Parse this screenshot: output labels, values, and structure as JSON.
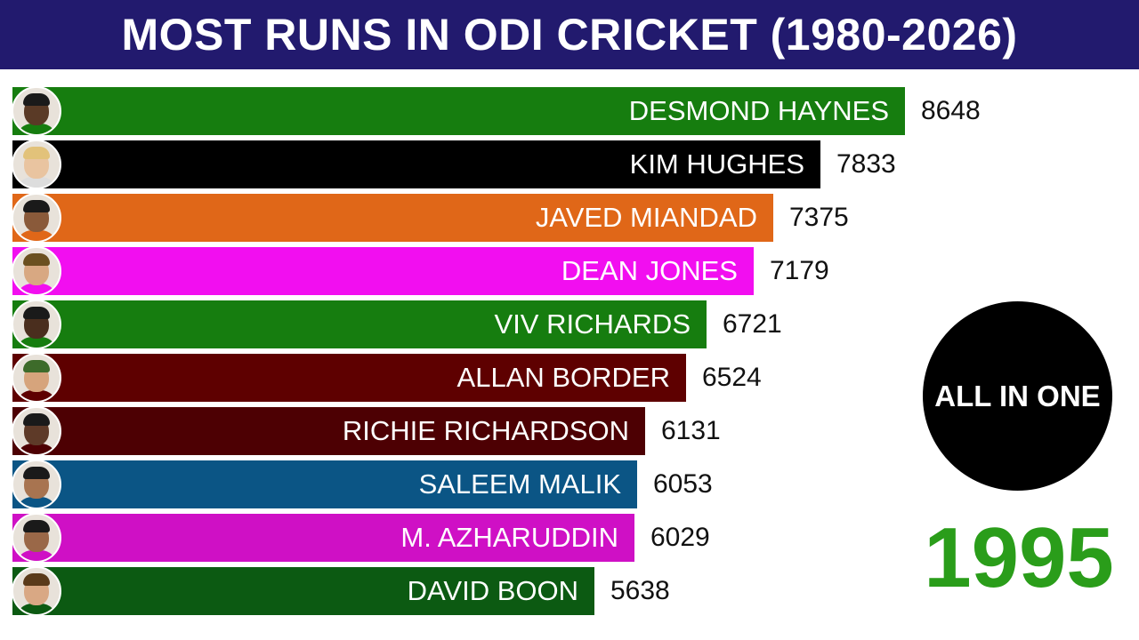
{
  "header": {
    "title": "MOST RUNS IN ODI CRICKET (1980-2026)"
  },
  "badge": {
    "label": "ALL IN ONE"
  },
  "year_label": "1995",
  "colors": {
    "title_bar": "#221a6e",
    "year_text": "#2a9d1a"
  },
  "chart_data": {
    "type": "bar",
    "orientation": "horizontal",
    "title": "MOST RUNS IN ODI CRICKET (1980-2026)",
    "xlabel": "",
    "ylabel": "",
    "xlim": [
      0,
      9500
    ],
    "grid": false,
    "categories": [
      "DESMOND HAYNES",
      "KIM HUGHES",
      "JAVED MIANDAD",
      "DEAN JONES",
      "VIV RICHARDS",
      "ALLAN BORDER",
      "RICHIE RICHARDSON",
      "SALEEM MALIK",
      "M. AZHARUDDIN",
      "DAVID BOON"
    ],
    "values": [
      8648,
      7833,
      7375,
      7179,
      6721,
      6524,
      6131,
      6053,
      6029,
      5638
    ],
    "bar_colors": [
      "#167d0f",
      "#000000",
      "#e06718",
      "#f20ef0",
      "#167d0f",
      "#5e0000",
      "#4d0003",
      "#0b5585",
      "#cf10c5",
      "#0c5a12"
    ],
    "avatar_icons": [
      "player-photo-icon",
      "player-photo-icon",
      "player-photo-icon",
      "player-photo-icon",
      "player-photo-icon",
      "player-photo-icon",
      "player-photo-icon",
      "player-photo-icon",
      "player-photo-icon",
      "player-photo-icon"
    ]
  }
}
